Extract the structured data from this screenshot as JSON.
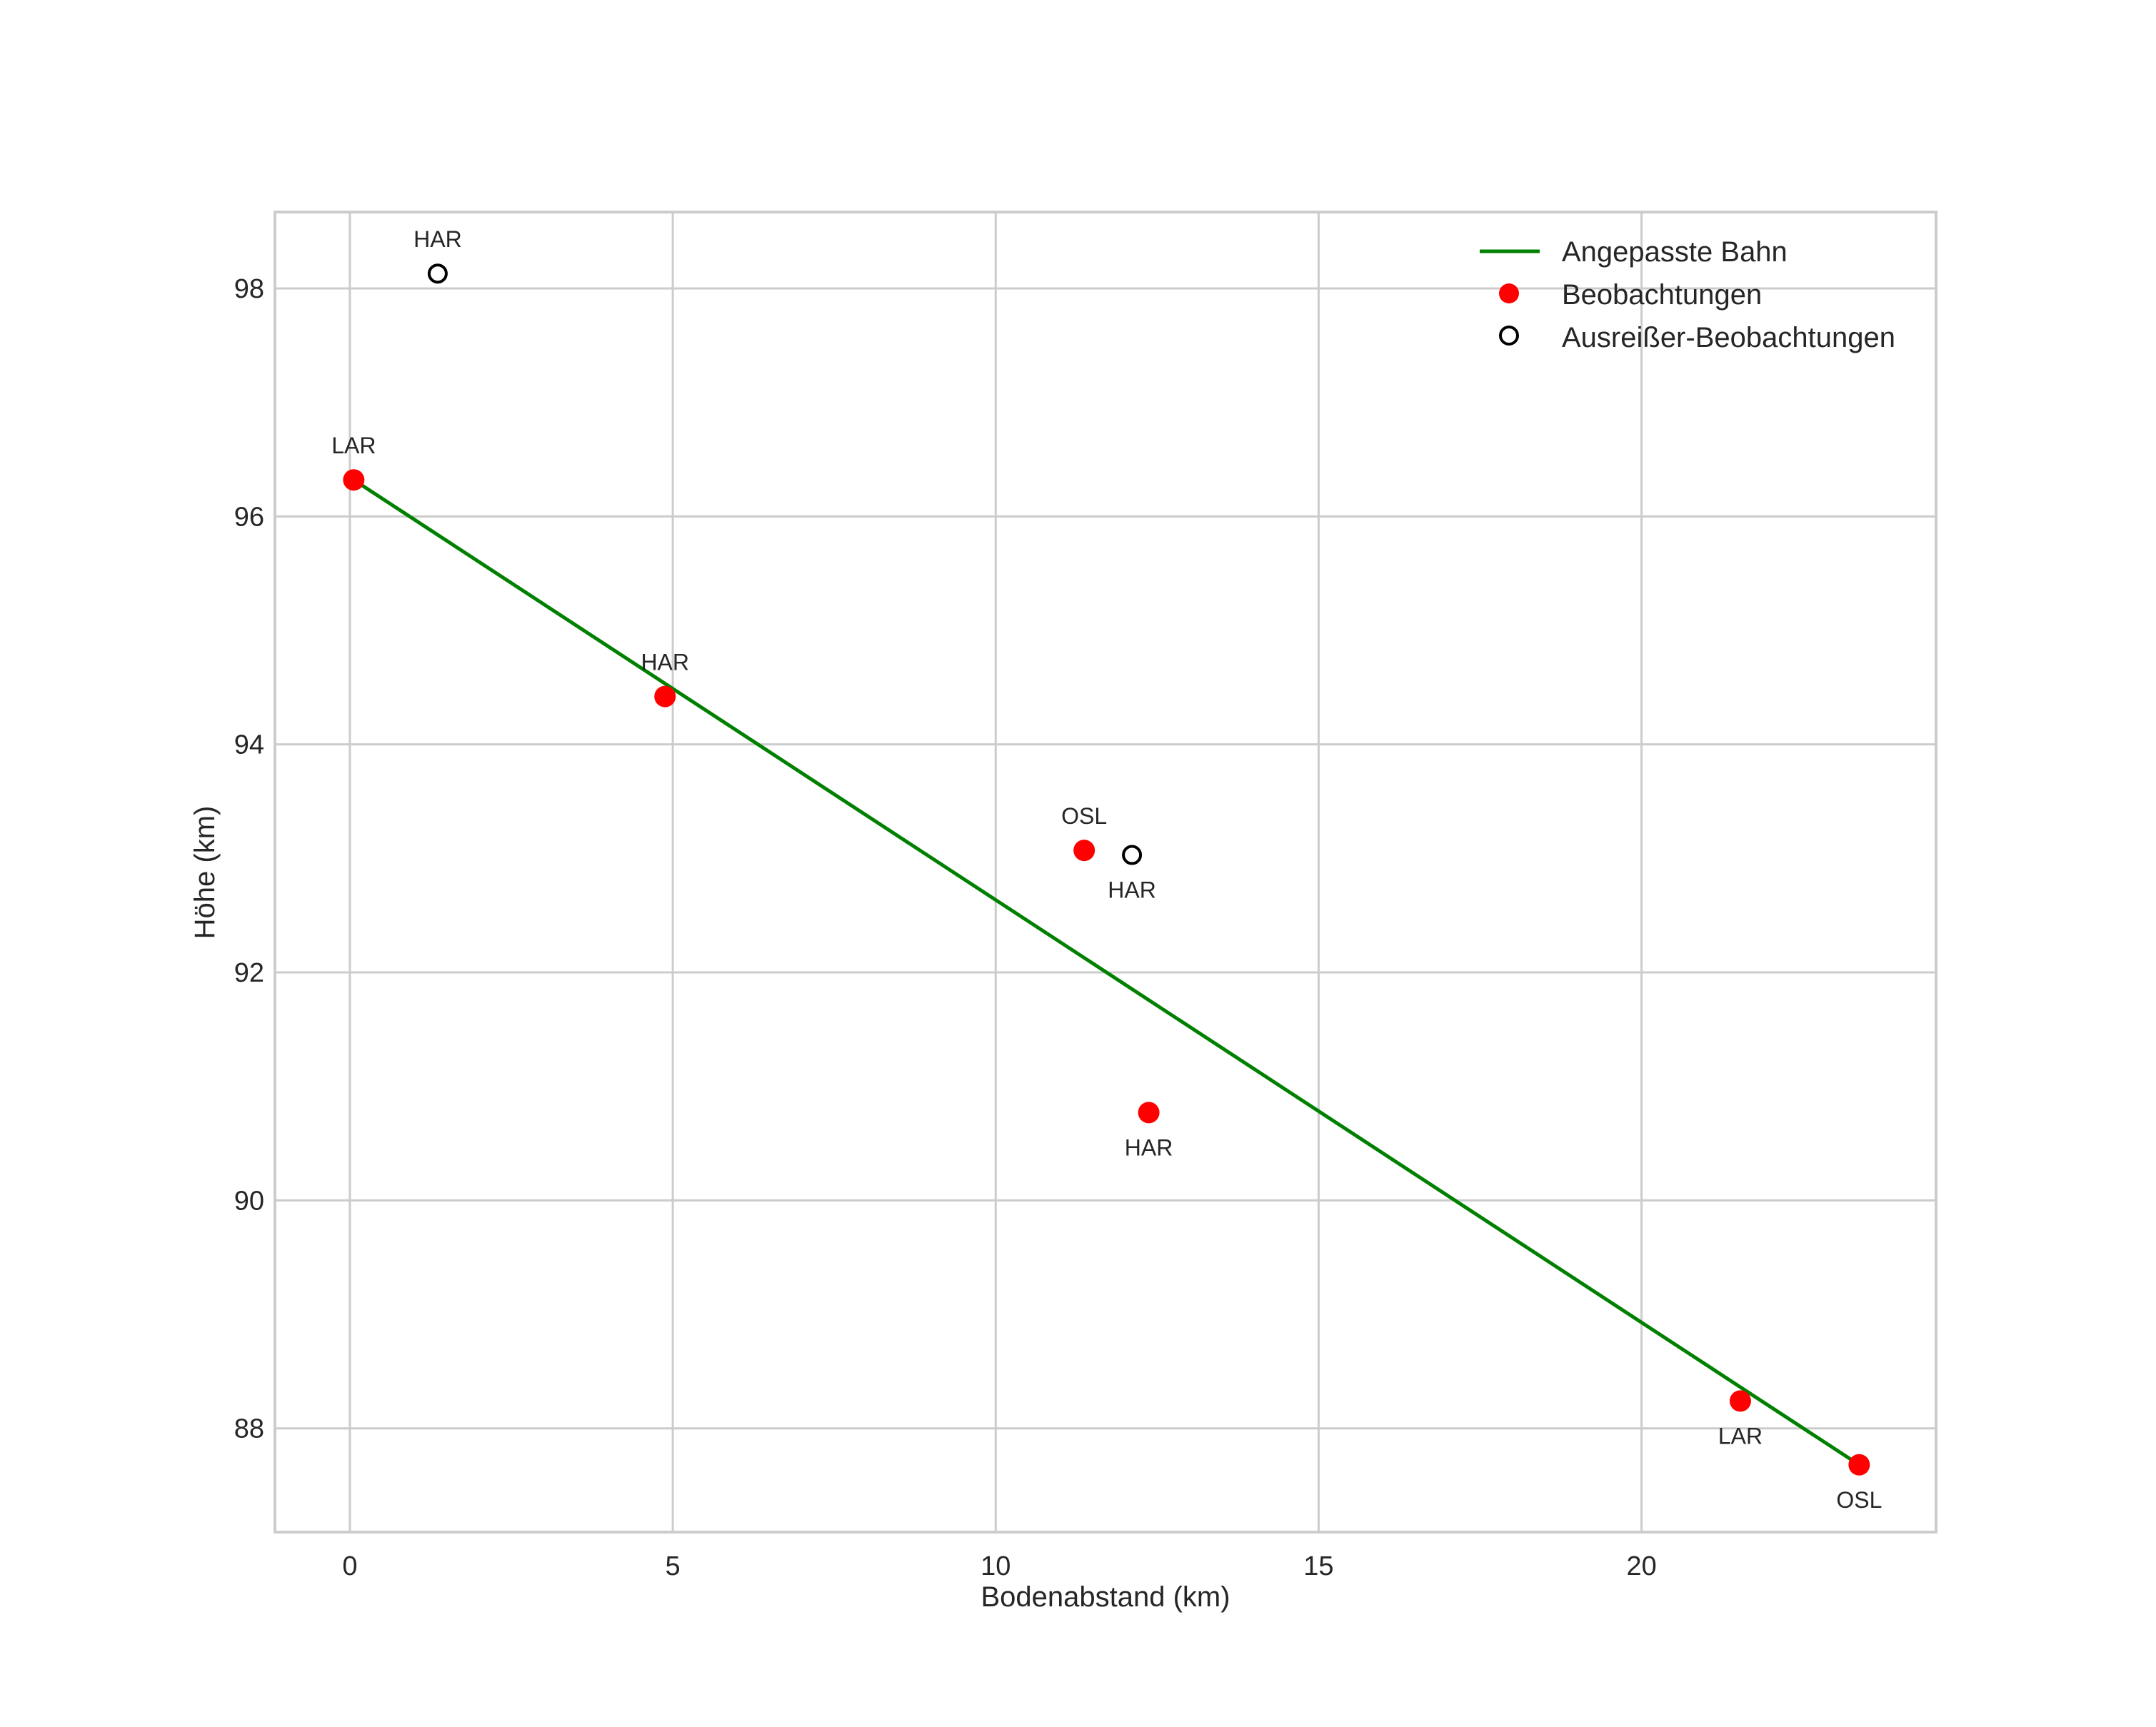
{
  "chart_data": {
    "type": "scatter",
    "title": "",
    "xlabel": "Bodenabstand (km)",
    "ylabel": "Höhe (km)",
    "xlim": [
      -1.16,
      24.56
    ],
    "ylim": [
      87.09,
      98.67
    ],
    "xticks": [
      0,
      5,
      10,
      15,
      20
    ],
    "yticks": [
      88,
      90,
      92,
      94,
      96,
      98
    ],
    "grid": true,
    "legend_position": "upper right",
    "legend": [
      {
        "label": "Angepasste Bahn",
        "kind": "line",
        "color": "#008000"
      },
      {
        "label": "Beobachtungen",
        "kind": "filled-circle",
        "color": "#ff0000"
      },
      {
        "label": "Ausreißer-Beobachtungen",
        "kind": "hollow-circle",
        "color": "#000000"
      }
    ],
    "series": [
      {
        "name": "Angepasste Bahn",
        "type": "line",
        "color": "#008000",
        "x": [
          0.06,
          23.37
        ],
        "y": [
          96.32,
          87.68
        ]
      },
      {
        "name": "Beobachtungen",
        "type": "scatter",
        "color": "#ff0000",
        "points": [
          {
            "x": 0.06,
            "y": 96.32,
            "label": "LAR",
            "label_pos": "above"
          },
          {
            "x": 4.88,
            "y": 94.42,
            "label": "HAR",
            "label_pos": "above"
          },
          {
            "x": 11.37,
            "y": 93.07,
            "label": "OSL",
            "label_pos": "above"
          },
          {
            "x": 12.37,
            "y": 90.77,
            "label": "HAR",
            "label_pos": "below"
          },
          {
            "x": 21.53,
            "y": 88.24,
            "label": "LAR",
            "label_pos": "below"
          },
          {
            "x": 23.37,
            "y": 87.68,
            "label": "OSL",
            "label_pos": "below"
          }
        ]
      },
      {
        "name": "Ausreißer-Beobachtungen",
        "type": "scatter",
        "color": "#000000",
        "hollow": true,
        "points": [
          {
            "x": 1.36,
            "y": 98.13,
            "label": "HAR",
            "label_pos": "above"
          },
          {
            "x": 12.11,
            "y": 93.03,
            "label": "HAR",
            "label_pos": "below"
          }
        ]
      }
    ]
  }
}
